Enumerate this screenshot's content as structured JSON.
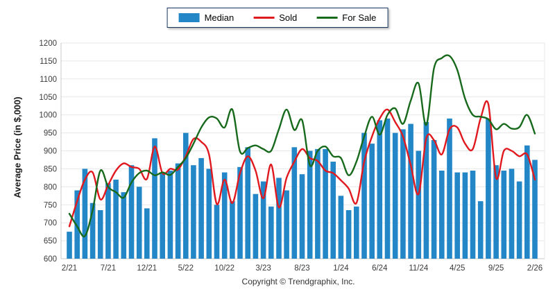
{
  "footer": {
    "copyright": "Copyright © Trendgraphix, Inc."
  },
  "axis": {
    "ylabel": "Average Price (in $,000)"
  },
  "chart_data": {
    "type": "bar",
    "subtype": "bar+line combo",
    "title": "",
    "ylabel": "Average Price (in $,000)",
    "xlabel": "",
    "ylim": [
      600,
      1200
    ],
    "ytick_step": 50,
    "grid": "horizontal",
    "legend_position": "top-center",
    "xtick_every": 5,
    "xtick_labels": [
      "2/21",
      "7/21",
      "12/21",
      "5/22",
      "10/22",
      "3/23",
      "8/23",
      "1/24",
      "6/24",
      "11/24",
      "4/25",
      "9/25",
      "2/26"
    ],
    "x_months": [
      "2/21",
      "3/21",
      "4/21",
      "5/21",
      "6/21",
      "7/21",
      "8/21",
      "9/21",
      "10/21",
      "11/21",
      "12/21",
      "1/22",
      "2/22",
      "3/22",
      "4/22",
      "5/22",
      "6/22",
      "7/22",
      "8/22",
      "9/22",
      "10/22",
      "11/22",
      "12/22",
      "1/23",
      "2/23",
      "3/23",
      "4/23",
      "5/23",
      "6/23",
      "7/23",
      "8/23",
      "9/23",
      "10/23",
      "11/23",
      "12/23",
      "1/24",
      "2/24",
      "3/24",
      "4/24",
      "5/24",
      "6/24",
      "7/24",
      "8/24",
      "9/24",
      "10/24",
      "11/24",
      "12/24",
      "1/25",
      "2/25",
      "3/25",
      "4/25",
      "5/25",
      "6/25",
      "7/25",
      "8/25",
      "9/25",
      "10/25",
      "11/25",
      "12/25",
      "1/26",
      "2/26"
    ],
    "series": [
      {
        "name": "Median",
        "type": "bar",
        "color": "#2386c7",
        "values": [
          675,
          790,
          850,
          755,
          735,
          810,
          820,
          785,
          860,
          800,
          740,
          935,
          840,
          845,
          865,
          950,
          860,
          880,
          850,
          750,
          840,
          760,
          855,
          910,
          780,
          815,
          745,
          825,
          790,
          910,
          835,
          900,
          905,
          905,
          870,
          775,
          735,
          745,
          950,
          920,
          985,
          990,
          950,
          960,
          975,
          900,
          980,
          930,
          845,
          990,
          840,
          840,
          845,
          760,
          990,
          860,
          845,
          850,
          815,
          915,
          875
        ]
      },
      {
        "name": "Sold",
        "type": "line",
        "color": "#e0191f",
        "values": [
          690,
          760,
          820,
          840,
          765,
          805,
          845,
          865,
          855,
          850,
          822,
          912,
          838,
          850,
          848,
          885,
          933,
          925,
          890,
          752,
          820,
          755,
          838,
          885,
          845,
          768,
          862,
          743,
          825,
          870,
          905,
          880,
          872,
          845,
          838,
          818,
          795,
          755,
          870,
          940,
          990,
          1015,
          980,
          940,
          860,
          780,
          935,
          930,
          890,
          960,
          965,
          920,
          905,
          990,
          1030,
          825,
          900,
          900,
          885,
          890,
          820
        ]
      },
      {
        "name": "For Sale",
        "type": "line",
        "color": "#17691b",
        "values": [
          725,
          690,
          663,
          735,
          845,
          800,
          785,
          770,
          812,
          838,
          845,
          832,
          840,
          833,
          855,
          880,
          920,
          965,
          993,
          990,
          965,
          1015,
          898,
          908,
          915,
          905,
          900,
          960,
          1015,
          958,
          985,
          860,
          900,
          912,
          885,
          880,
          832,
          870,
          940,
          995,
          945,
          1000,
          1018,
          975,
          1040,
          1088,
          972,
          1130,
          1158,
          1164,
          1125,
          1045,
          1000,
          995,
          988,
          960,
          975,
          962,
          966,
          1000,
          948
        ]
      }
    ],
    "colors": {
      "bar": "#2386c7",
      "sold_line": "#e0191f",
      "forsale_line": "#17691b",
      "gridline": "#e7e7e7",
      "axis_line": "#c9c9c9",
      "tick_text": "#3a3a3a",
      "legend_border": "#17375e"
    }
  }
}
